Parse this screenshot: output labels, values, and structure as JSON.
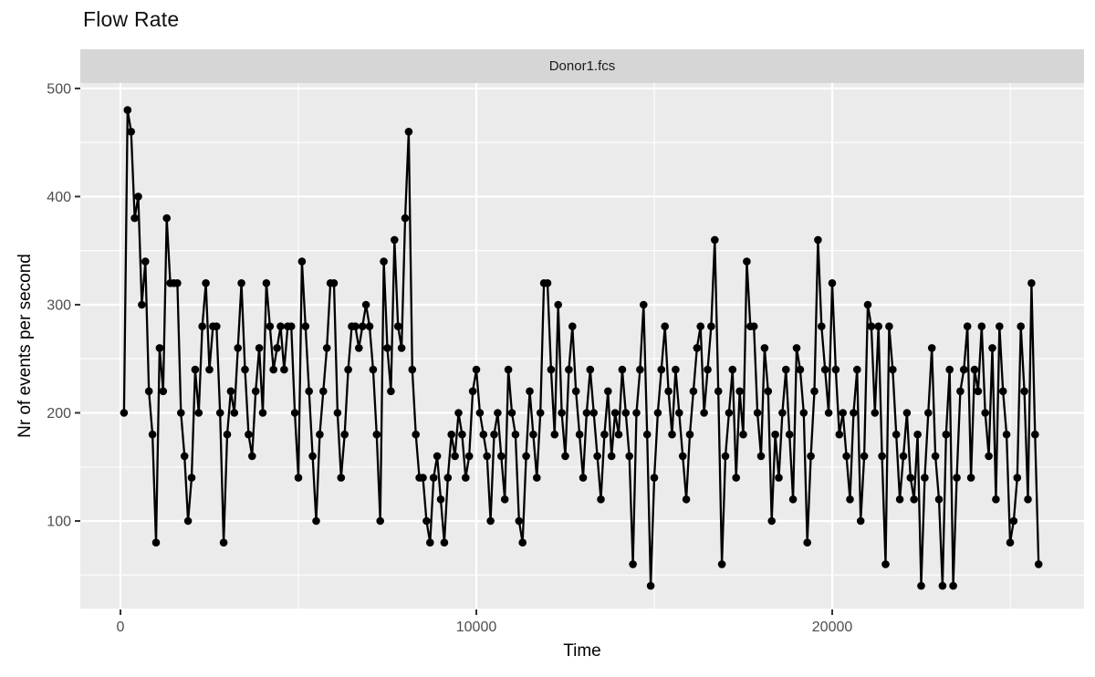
{
  "chart_data": {
    "type": "line",
    "title": "Flow Rate",
    "facet_label": "Donor1.fcs",
    "xlabel": "Time",
    "ylabel": "Nr of events per second",
    "x_ticks": [
      0,
      10000,
      20000
    ],
    "x_tick_labels": [
      "0",
      "10000",
      "20000"
    ],
    "x_minor_ticks": [
      5000,
      15000,
      25000
    ],
    "y_ticks": [
      100,
      200,
      300,
      400,
      500
    ],
    "y_tick_labels": [
      "100",
      "200",
      "300",
      "400",
      "500"
    ],
    "y_minor_ticks": [
      50,
      150,
      250,
      350,
      450
    ],
    "xlim": [
      -1128,
      27076
    ],
    "ylim": [
      19,
      505
    ],
    "grid": "on",
    "legend": "none",
    "marker": "filled-circle-with-line",
    "x_start": 100,
    "x_step": 100,
    "values": [
      200,
      480,
      460,
      380,
      400,
      300,
      340,
      220,
      180,
      80,
      260,
      220,
      380,
      320,
      320,
      320,
      200,
      160,
      100,
      140,
      240,
      200,
      280,
      320,
      240,
      280,
      280,
      200,
      80,
      180,
      220,
      200,
      260,
      320,
      240,
      180,
      160,
      220,
      260,
      200,
      320,
      280,
      240,
      260,
      280,
      240,
      280,
      280,
      200,
      140,
      340,
      280,
      220,
      160,
      100,
      180,
      220,
      260,
      320,
      320,
      200,
      140,
      180,
      240,
      280,
      280,
      260,
      280,
      300,
      280,
      240,
      180,
      100,
      340,
      260,
      220,
      360,
      280,
      260,
      380,
      460,
      240,
      180,
      140,
      140,
      100,
      80,
      140,
      160,
      120,
      80,
      140,
      180,
      160,
      200,
      180,
      140,
      160,
      220,
      240,
      200,
      180,
      160,
      100,
      180,
      200,
      160,
      120,
      240,
      200,
      180,
      100,
      80,
      160,
      220,
      180,
      140,
      200,
      320,
      320,
      240,
      180,
      300,
      200,
      160,
      240,
      280,
      220,
      180,
      140,
      200,
      240,
      200,
      160,
      120,
      180,
      220,
      160,
      200,
      180,
      240,
      200,
      160,
      60,
      200,
      240,
      300,
      180,
      40,
      140,
      200,
      240,
      280,
      220,
      180,
      240,
      200,
      160,
      120,
      180,
      220,
      260,
      280,
      200,
      240,
      280,
      360,
      220,
      60,
      160,
      200,
      240,
      140,
      220,
      180,
      340,
      280,
      280,
      200,
      160,
      260,
      220,
      100,
      180,
      140,
      200,
      240,
      180,
      120,
      260,
      240,
      200,
      80,
      160,
      220,
      360,
      280,
      240,
      200,
      320,
      240,
      180,
      200,
      160,
      120,
      200,
      240,
      100,
      160,
      300,
      280,
      200,
      280,
      160,
      60,
      280,
      240,
      180,
      120,
      160,
      200,
      140,
      120,
      180,
      40,
      140,
      200,
      260,
      160,
      120,
      40,
      180,
      240,
      40,
      140,
      220,
      240,
      280,
      140,
      240,
      220,
      280,
      200,
      160,
      260,
      120,
      280,
      220,
      180,
      80,
      100,
      140,
      280,
      220,
      120,
      320,
      180,
      60
    ],
    "style": {
      "panel_bg": "#EBEBEB",
      "strip_bg": "#D6D6D6",
      "grid_color": "#FFFFFF",
      "point_color": "#000000",
      "line_color": "#000000",
      "tick_mark_color": "#333333",
      "tick_label_color": "#4D4D4D"
    }
  }
}
